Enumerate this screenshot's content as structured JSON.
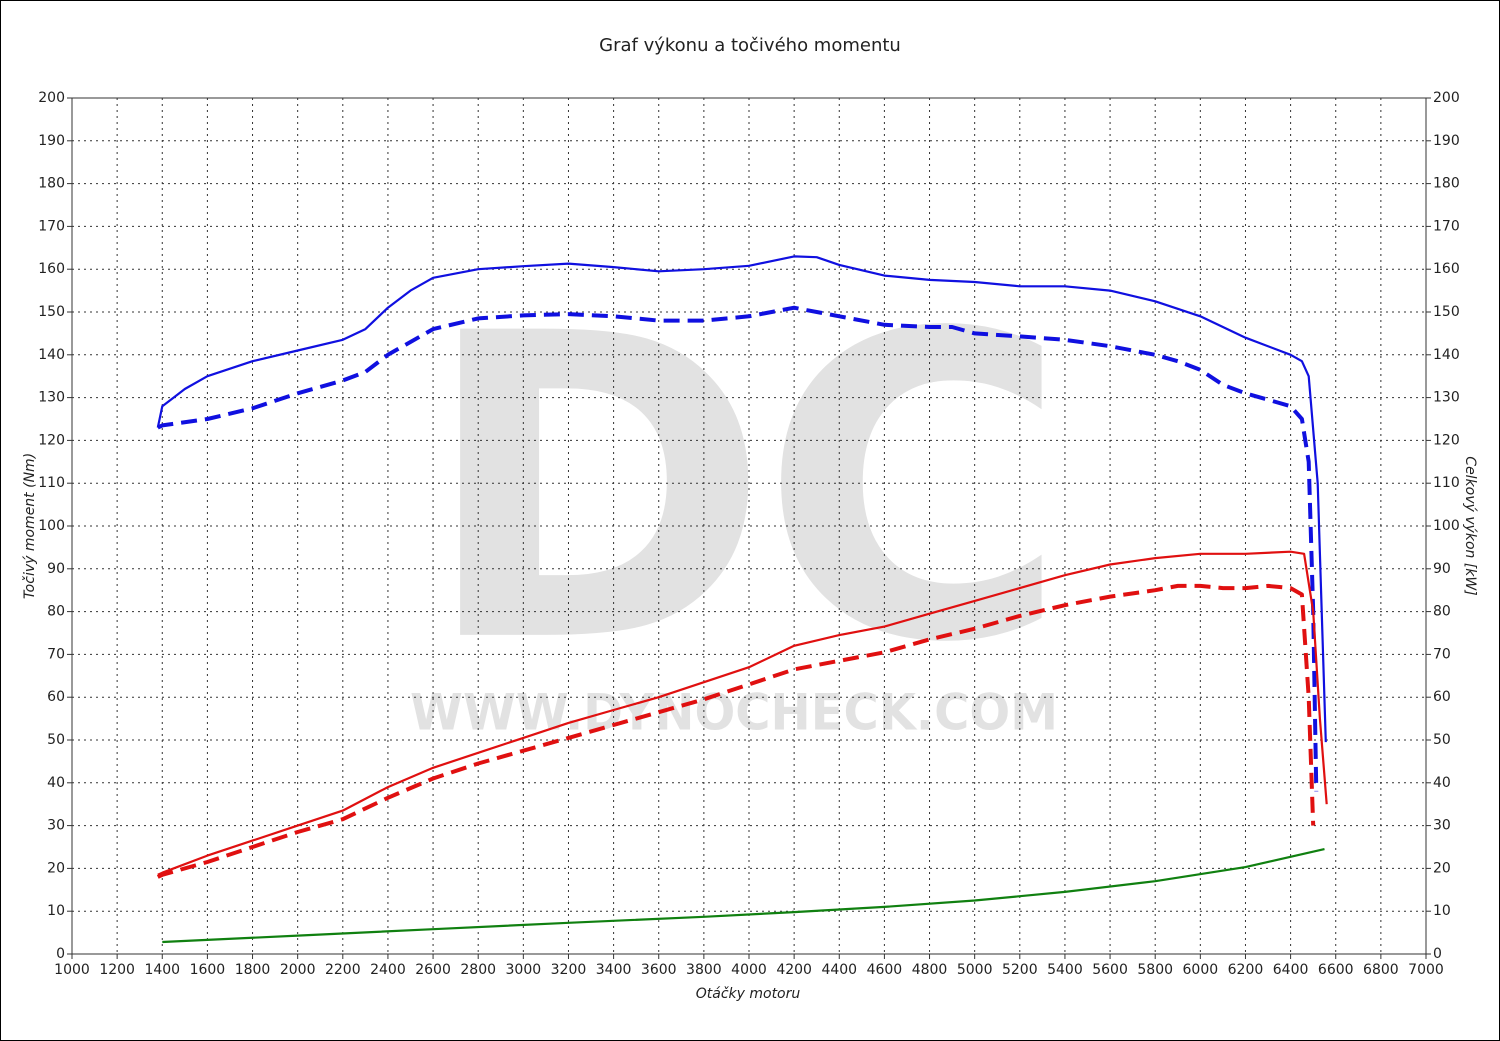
{
  "chart_data": {
    "type": "line",
    "title": "Graf výkonu a točivého momentu",
    "xlabel": "Otáčky motoru",
    "ylabel": "Točivý moment (Nm)",
    "y2label": "Celkový výkon [kW]",
    "watermark": {
      "logo": "DC",
      "url": "WWW.DYNOCHECK.COM"
    },
    "grid": true,
    "xlim": [
      1000,
      7000
    ],
    "xticks": [
      1000,
      1200,
      1400,
      1600,
      1800,
      2000,
      2200,
      2400,
      2600,
      2800,
      3000,
      3200,
      3400,
      3600,
      3800,
      4000,
      4200,
      4400,
      4600,
      4800,
      5000,
      5200,
      5400,
      5600,
      5800,
      6000,
      6200,
      6400,
      6600,
      6800,
      7000
    ],
    "ylim": [
      0,
      200
    ],
    "yticks": [
      0,
      10,
      20,
      30,
      40,
      50,
      60,
      70,
      80,
      90,
      100,
      110,
      120,
      130,
      140,
      150,
      160,
      170,
      180,
      190,
      200
    ],
    "y2lim": [
      0,
      200
    ],
    "y2ticks": [
      0,
      10,
      20,
      30,
      40,
      50,
      60,
      70,
      80,
      90,
      100,
      110,
      120,
      130,
      140,
      150,
      160,
      170,
      180,
      190,
      200
    ],
    "series": [
      {
        "color": "#1010e0",
        "dashed": false,
        "x": [
          1380,
          1400,
          1450,
          1500,
          1600,
          1800,
          2000,
          2200,
          2300,
          2400,
          2500,
          2600,
          2800,
          3000,
          3200,
          3400,
          3600,
          3800,
          4000,
          4200,
          4300,
          4400,
          4600,
          4800,
          5000,
          5200,
          5400,
          5600,
          5800,
          6000,
          6200,
          6400,
          6450,
          6480,
          6520,
          6556
        ],
        "values": [
          123,
          128,
          130,
          132,
          135,
          138.5,
          141,
          143.5,
          146,
          151,
          155,
          158,
          160,
          160.7,
          161.3,
          160.5,
          159.5,
          160,
          160.8,
          163,
          162.8,
          161,
          158.5,
          157.5,
          157,
          156,
          156,
          155,
          152.5,
          149,
          144,
          140,
          138.5,
          135,
          110,
          49.5
        ]
      },
      {
        "color": "#1010e0",
        "dashed": true,
        "x": [
          1380,
          1400,
          1600,
          1800,
          2000,
          2200,
          2300,
          2400,
          2600,
          2800,
          3000,
          3200,
          3400,
          3600,
          3800,
          4000,
          4200,
          4400,
          4600,
          4800,
          4900,
          5000,
          5200,
          5400,
          5600,
          5800,
          5900,
          6000,
          6100,
          6200,
          6300,
          6400,
          6450,
          6480,
          6500,
          6514
        ],
        "values": [
          123,
          123.5,
          125,
          127.5,
          131,
          134,
          136,
          140,
          146,
          148.5,
          149.2,
          149.5,
          149,
          148,
          148,
          149,
          151,
          149,
          147,
          146.5,
          146.5,
          145,
          144.3,
          143.5,
          142,
          140,
          138.5,
          136.5,
          133,
          131,
          129.5,
          128,
          125,
          115,
          80,
          38
        ]
      },
      {
        "color": "#e01010",
        "dashed": false,
        "axis": "y2",
        "x": [
          1380,
          1400,
          1600,
          1800,
          2000,
          2200,
          2400,
          2600,
          2800,
          3000,
          3200,
          3400,
          3600,
          3800,
          4000,
          4200,
          4400,
          4600,
          4800,
          5000,
          5200,
          5400,
          5600,
          5800,
          6000,
          6200,
          6400,
          6460,
          6500,
          6530,
          6560
        ],
        "values": [
          18.5,
          19,
          23,
          26.5,
          30,
          33.5,
          39,
          43.5,
          47,
          50.5,
          54,
          57,
          60,
          63.5,
          67,
          72,
          74.5,
          76.5,
          79.5,
          82.5,
          85.5,
          88.5,
          91,
          92.5,
          93.5,
          93.5,
          94,
          93.5,
          80,
          55,
          35
        ]
      },
      {
        "color": "#e01010",
        "dashed": true,
        "axis": "y2",
        "x": [
          1380,
          1400,
          1600,
          1800,
          2000,
          2200,
          2400,
          2600,
          2800,
          3000,
          3200,
          3400,
          3600,
          3800,
          4000,
          4200,
          4400,
          4600,
          4800,
          5000,
          5200,
          5400,
          5600,
          5800,
          5900,
          6000,
          6100,
          6200,
          6300,
          6400,
          6450,
          6480,
          6500
        ],
        "values": [
          18,
          18.5,
          21.5,
          25,
          28.5,
          31.5,
          36.5,
          41,
          44.5,
          47.5,
          50.5,
          53.5,
          56.5,
          59.5,
          63,
          66.5,
          68.5,
          70.5,
          73.5,
          76,
          79,
          81.5,
          83.5,
          85,
          86,
          86,
          85.5,
          85.5,
          86,
          85.5,
          84,
          60,
          30
        ]
      },
      {
        "color": "#108010",
        "dashed": false,
        "axis": "y2",
        "x": [
          1400,
          2000,
          2600,
          3200,
          3800,
          4200,
          4600,
          5000,
          5400,
          5800,
          6200,
          6550
        ],
        "values": [
          2.8,
          4.3,
          5.8,
          7.3,
          8.7,
          9.8,
          11,
          12.5,
          14.5,
          17,
          20.3,
          24.5
        ]
      }
    ]
  }
}
